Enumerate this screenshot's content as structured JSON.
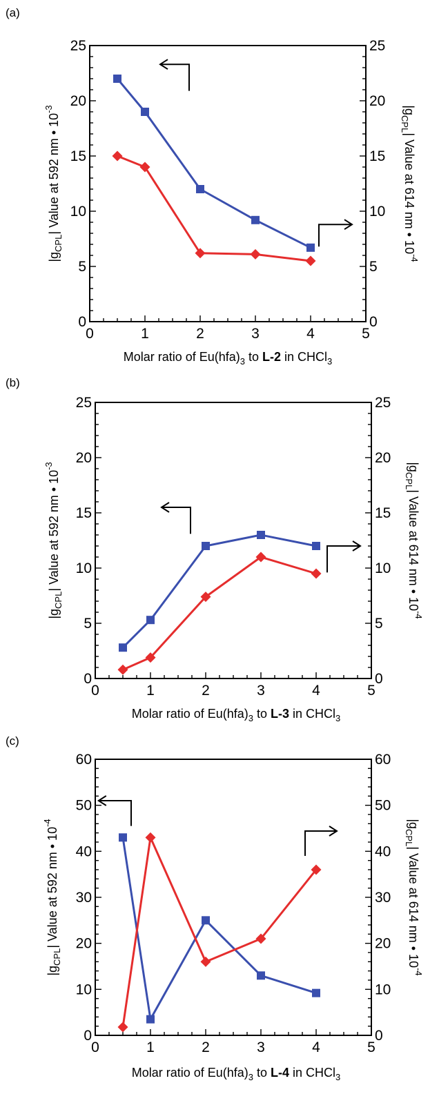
{
  "colors": {
    "blue": "#3a4fae",
    "red": "#e52d2d",
    "axis": "#000000"
  },
  "chart_data": [
    {
      "type": "line",
      "panel_label": "(a)",
      "x": [
        0.5,
        1,
        2,
        3,
        4
      ],
      "xlim": [
        0,
        5
      ],
      "ylim": [
        0,
        25
      ],
      "y2lim": [
        0,
        25
      ],
      "xticks": [
        0,
        1,
        2,
        3,
        4,
        5
      ],
      "yticks": [
        0,
        5,
        10,
        15,
        20,
        25
      ],
      "xlabel": {
        "pre": "Molar ratio of Eu(hfa)",
        "sub": "3",
        "mid": " to ",
        "bold": "L-2",
        "post": " in CHCl",
        "sub2": "3"
      },
      "ylabel": {
        "pre": "|g",
        "sub": "CPL",
        "post": "| Value at 592 nm • 10",
        "sup": "-3"
      },
      "y2label": {
        "pre": "|g",
        "sub": "CPL",
        "post": "| Value at 614 nm • 10",
        "sup": "-4"
      },
      "series": [
        {
          "axis": "left",
          "marker": "square",
          "color": "#3a4fae",
          "values": [
            22,
            19,
            12,
            9.2,
            6.7
          ]
        },
        {
          "axis": "right",
          "marker": "diamond",
          "color": "#e52d2d",
          "values": [
            15,
            14,
            6.2,
            6.1,
            5.5
          ]
        }
      ],
      "arrows": [
        {
          "direction": "left",
          "tip": [
            2.55,
            23.3
          ],
          "corner": [
            3.6,
            23.3
          ],
          "tail": [
            3.6,
            20.9
          ]
        },
        {
          "direction": "right",
          "tip": [
            9.5,
            8.8
          ],
          "corner": [
            8.3,
            8.8
          ],
          "tail": [
            8.3,
            6.8
          ]
        }
      ]
    },
    {
      "type": "line",
      "panel_label": "(b)",
      "x": [
        0.5,
        1,
        2,
        3,
        4
      ],
      "xlim": [
        0,
        5
      ],
      "ylim": [
        0,
        25
      ],
      "y2lim": [
        0,
        25
      ],
      "xticks": [
        0,
        1,
        2,
        3,
        4,
        5
      ],
      "yticks": [
        0,
        5,
        10,
        15,
        20,
        25
      ],
      "xlabel": {
        "pre": "Molar ratio of Eu(hfa)",
        "sub": "3",
        "mid": " to ",
        "bold": "L-3",
        "post": " in CHCl",
        "sub2": "3"
      },
      "ylabel": {
        "pre": "|g",
        "sub": "CPL",
        "post": "| Value at 592 nm • 10",
        "sup": "-3"
      },
      "y2label": {
        "pre": "|g",
        "sub": "CPL",
        "post": "| Value at 614 nm • 10",
        "sup": "-4"
      },
      "series": [
        {
          "axis": "left",
          "marker": "square",
          "color": "#3a4fae",
          "values": [
            2.8,
            5.3,
            12,
            13,
            12
          ]
        },
        {
          "axis": "right",
          "marker": "diamond",
          "color": "#e52d2d",
          "values": [
            0.8,
            1.9,
            7.4,
            11,
            9.5
          ]
        }
      ],
      "arrows": [
        {
          "direction": "left",
          "tip": [
            2.4,
            15.5
          ],
          "corner": [
            3.45,
            15.5
          ],
          "tail": [
            3.45,
            13.1
          ]
        },
        {
          "direction": "right",
          "tip": [
            9.6,
            12.0
          ],
          "corner": [
            8.4,
            12.0
          ],
          "tail": [
            8.4,
            9.6
          ]
        }
      ]
    },
    {
      "type": "line",
      "panel_label": "(c)",
      "x": [
        0.5,
        1,
        2,
        3,
        4
      ],
      "xlim": [
        0,
        5
      ],
      "ylim": [
        0,
        60
      ],
      "y2lim": [
        0,
        60
      ],
      "xticks": [
        0,
        1,
        2,
        3,
        4,
        5
      ],
      "yticks": [
        0,
        10,
        20,
        30,
        40,
        50,
        60
      ],
      "xlabel": {
        "pre": "Molar ratio of Eu(hfa)",
        "sub": "3",
        "mid": " to ",
        "bold": "L-4",
        "post": " in CHCl",
        "sub2": "3"
      },
      "ylabel": {
        "pre": "|g",
        "sub": "CPL",
        "post": "| Value at 592 nm • 10",
        "sup": "-4"
      },
      "y2label": {
        "pre": "|g",
        "sub": "CPL",
        "post": "| Value at 614 nm • 10",
        "sup": "-4"
      },
      "series": [
        {
          "axis": "left",
          "marker": "square",
          "color": "#3a4fae",
          "values": [
            43,
            3.5,
            25,
            13,
            9.2
          ]
        },
        {
          "axis": "right",
          "marker": "diamond",
          "color": "#e52d2d",
          "values": [
            1.8,
            43,
            16,
            21,
            36
          ]
        }
      ],
      "arrows": [
        {
          "direction": "left",
          "tip": [
            0.12,
            51
          ],
          "corner": [
            1.3,
            51
          ],
          "tail": [
            1.3,
            45.5
          ]
        },
        {
          "direction": "right",
          "tip": [
            8.75,
            44.4
          ],
          "corner": [
            7.6,
            44.4
          ],
          "tail": [
            7.6,
            39
          ]
        }
      ]
    }
  ]
}
